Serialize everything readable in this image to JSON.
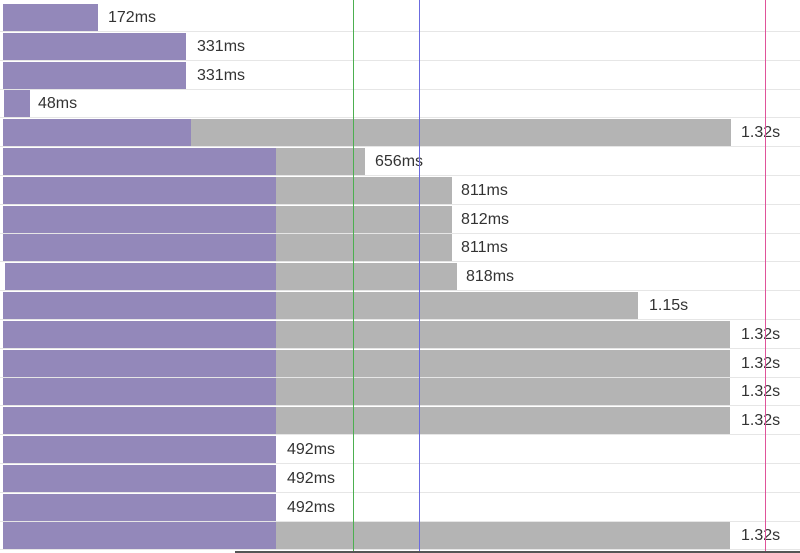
{
  "colors": {
    "wait": "#9388ba",
    "receive": "#b4b4b4",
    "marker_green": "#4caf50",
    "marker_blue": "#6b6bdf",
    "marker_pink": "#e0539a"
  },
  "timing_rows": [
    {
      "label": "172ms"
    },
    {
      "label": "331ms"
    },
    {
      "label": "331ms"
    },
    {
      "label": "48ms"
    },
    {
      "label": "1.32s"
    },
    {
      "label": "656ms"
    },
    {
      "label": "811ms"
    },
    {
      "label": "812ms"
    },
    {
      "label": "811ms"
    },
    {
      "label": "818ms"
    },
    {
      "label": "1.15s"
    },
    {
      "label": "1.32s"
    },
    {
      "label": "1.32s"
    },
    {
      "label": "1.32s"
    },
    {
      "label": "1.32s"
    },
    {
      "label": "492ms"
    },
    {
      "label": "492ms"
    },
    {
      "label": "492ms"
    },
    {
      "label": "1.32s"
    }
  ]
}
